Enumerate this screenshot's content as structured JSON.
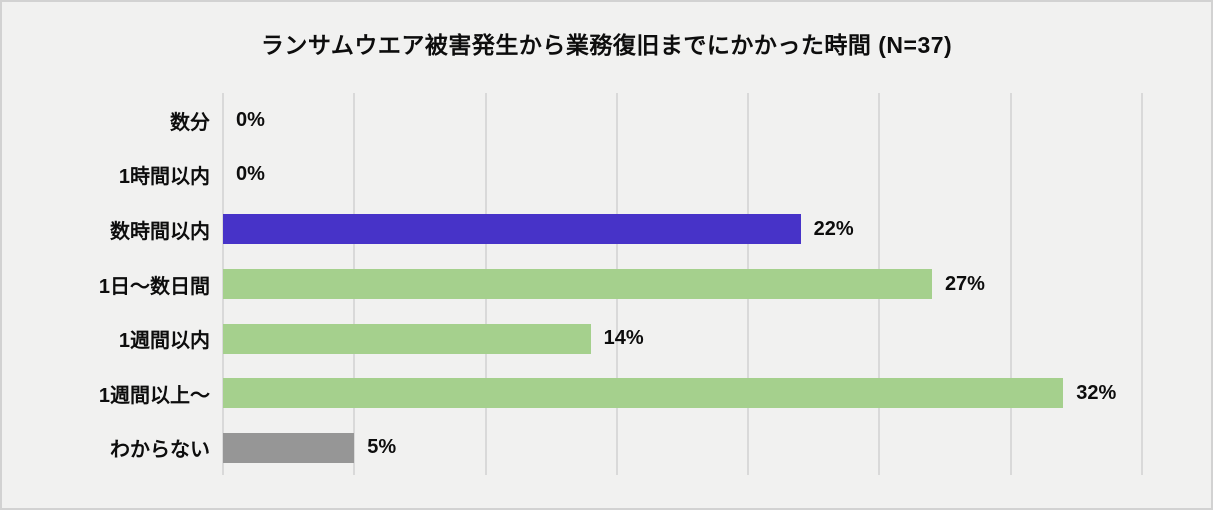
{
  "chart_data": {
    "type": "bar",
    "orientation": "horizontal",
    "title": "ランサムウエア被害発生から業務復旧までにかかった時間 (N=37)",
    "categories": [
      "数分",
      "1時間以内",
      "数時間以内",
      "1日〜数日間",
      "1週間以内",
      "1週間以上〜",
      "わからない"
    ],
    "values": [
      0,
      0,
      22,
      27,
      14,
      32,
      5
    ],
    "value_labels": [
      "0%",
      "0%",
      "22%",
      "27%",
      "14%",
      "32%",
      "5%"
    ],
    "bar_colors": [
      "#4733c8",
      "#4733c8",
      "#4733c8",
      "#a5d08d",
      "#a5d08d",
      "#a5d08d",
      "#969696"
    ],
    "unit": "%",
    "xlabel": "",
    "ylabel": "",
    "xlim": [
      0,
      35
    ],
    "gridline_step": 5,
    "grid": true,
    "legend": false,
    "colors": {
      "accent_purple": "#4733c8",
      "accent_green": "#a5d08d",
      "accent_gray": "#969696",
      "background": "#f1f1f0",
      "gridline": "#d9d9d9",
      "border": "#d2d2d2",
      "text": "#0d0d0d"
    }
  }
}
